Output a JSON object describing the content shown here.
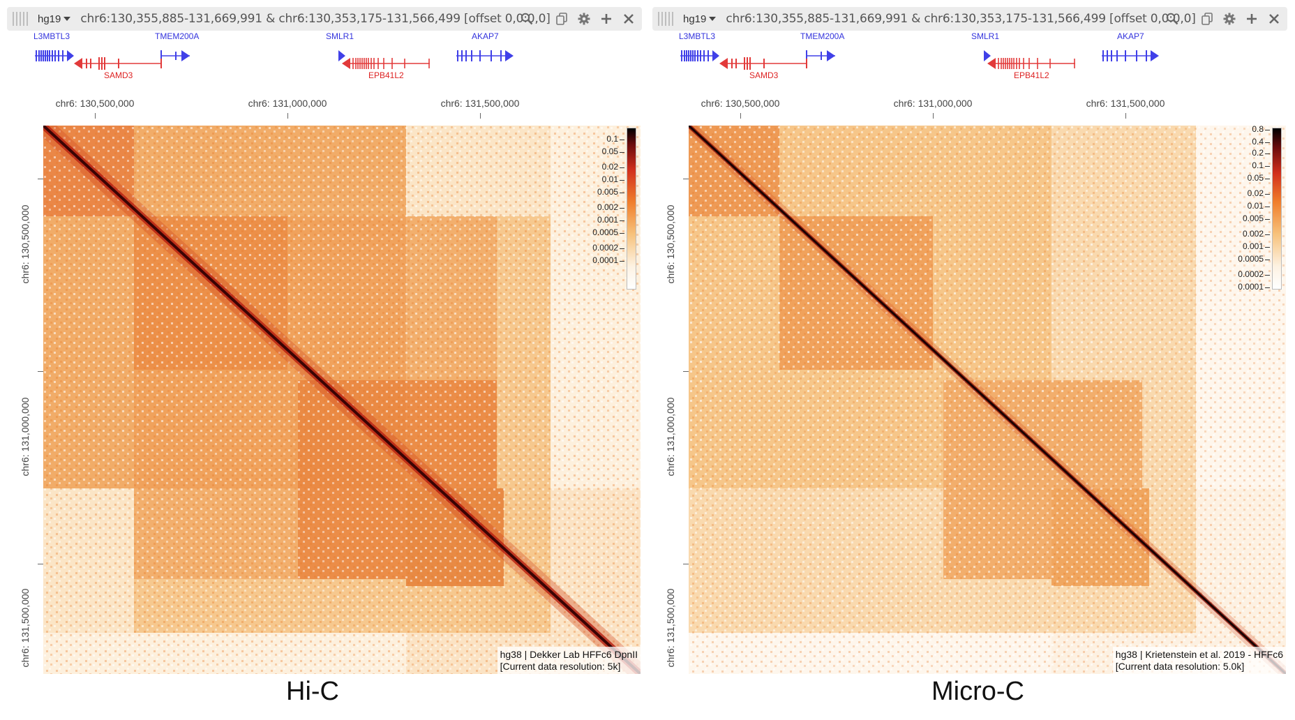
{
  "colors": {
    "gene_fwd": "#4040e8",
    "gene_rev": "#e23a3a",
    "toolbar_bg": "#ececec"
  },
  "panels": [
    {
      "id": "hic",
      "assembly": "hg19",
      "location": "chr6:130,355,885-131,669,991 & chr6:130,353,175-131,566,499 [offset 0,0:0,0]",
      "genes": {
        "top": [
          "L3MBTL3",
          "TMEM200A",
          "SMLR1",
          "AKAP7"
        ],
        "bottom": [
          "SAMD3",
          "EPB41L2"
        ]
      },
      "x_ticks": [
        "chr6: 130,500,000",
        "chr6: 131,000,000",
        "chr6: 131,500,000"
      ],
      "y_ticks": [
        "chr6: 130,500,000",
        "chr6: 131,000,000",
        "chr6: 131,500,000"
      ],
      "colorbar_labels": [
        "0.1",
        "0.05",
        "0.02",
        "0.01",
        "0.005",
        "0.002",
        "0.001",
        "0.0005",
        "0.0002",
        "0.0001"
      ],
      "info_line1": "hg38 | Dekker Lab HFFc6 DpnII",
      "info_line2": "[Current data resolution: 5k]",
      "caption": "Hi-C"
    },
    {
      "id": "microc",
      "assembly": "hg19",
      "location": "chr6:130,355,885-131,669,991 & chr6:130,353,175-131,566,499 [offset 0,0:0,0]",
      "genes": {
        "top": [
          "L3MBTL3",
          "TMEM200A",
          "SMLR1",
          "AKAP7"
        ],
        "bottom": [
          "SAMD3",
          "EPB41L2"
        ]
      },
      "x_ticks": [
        "chr6: 130,500,000",
        "chr6: 131,000,000",
        "chr6: 131,500,000"
      ],
      "y_ticks": [
        "chr6: 130,500,000",
        "chr6: 131,000,000",
        "chr6: 131,500,000"
      ],
      "colorbar_labels": [
        "0.8",
        "0.4",
        "0.2",
        "0.1",
        "0.05",
        "0.02",
        "0.01",
        "0.005",
        "0.002",
        "0.001",
        "0.0005",
        "0.0002",
        "0.0001"
      ],
      "info_line1": "hg38 | Krietenstein et al. 2019 - HFFc6",
      "info_line2": "[Current data resolution: 5.0k]",
      "caption": "Micro-C"
    }
  ]
}
